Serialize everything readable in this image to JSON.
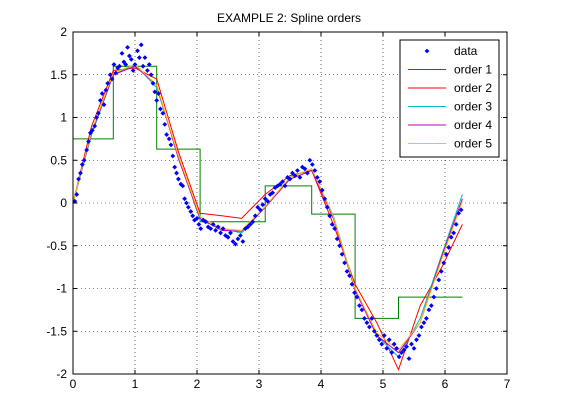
{
  "chart_data": {
    "type": "line",
    "title": "EXAMPLE 2: Spline orders",
    "xlabel": "",
    "ylabel": "",
    "xlim": [
      0,
      7
    ],
    "ylim": [
      -2,
      2
    ],
    "xticks": [
      0,
      1,
      2,
      3,
      4,
      5,
      6,
      7
    ],
    "yticks": [
      -2,
      -1.5,
      -1,
      -0.5,
      0,
      0.5,
      1,
      1.5,
      2
    ],
    "xtick_labels": [
      "0",
      "1",
      "2",
      "3",
      "4",
      "5",
      "6",
      "7"
    ],
    "ytick_labels": [
      "-2",
      "-1.5",
      "-1",
      "-0.5",
      "0",
      "0.5",
      "1",
      "1.5",
      "2"
    ],
    "grid": true,
    "legend_position": "top-right",
    "series": [
      {
        "name": "data",
        "kind": "scatter",
        "color": "#0000ff",
        "points": [
          [
            0.03,
            0.02
          ],
          [
            0.06,
            0.1
          ],
          [
            0.09,
            0.28
          ],
          [
            0.12,
            0.35
          ],
          [
            0.15,
            0.45
          ],
          [
            0.18,
            0.5
          ],
          [
            0.22,
            0.62
          ],
          [
            0.25,
            0.72
          ],
          [
            0.28,
            0.82
          ],
          [
            0.31,
            0.85
          ],
          [
            0.35,
            0.9
          ],
          [
            0.38,
            1.0
          ],
          [
            0.41,
            1.05
          ],
          [
            0.44,
            1.2
          ],
          [
            0.47,
            1.28
          ],
          [
            0.5,
            1.15
          ],
          [
            0.53,
            1.32
          ],
          [
            0.56,
            1.4
          ],
          [
            0.6,
            1.5
          ],
          [
            0.63,
            1.45
          ],
          [
            0.66,
            1.62
          ],
          [
            0.69,
            1.52
          ],
          [
            0.72,
            1.58
          ],
          [
            0.75,
            1.6
          ],
          [
            0.79,
            1.75
          ],
          [
            0.82,
            1.65
          ],
          [
            0.85,
            1.62
          ],
          [
            0.88,
            1.82
          ],
          [
            0.91,
            1.72
          ],
          [
            0.94,
            1.68
          ],
          [
            0.97,
            1.55
          ],
          [
            1.0,
            1.62
          ],
          [
            1.04,
            1.78
          ],
          [
            1.07,
            1.7
          ],
          [
            1.1,
            1.85
          ],
          [
            1.13,
            1.6
          ],
          [
            1.16,
            1.7
          ],
          [
            1.2,
            1.55
          ],
          [
            1.23,
            1.62
          ],
          [
            1.26,
            1.5
          ],
          [
            1.29,
            1.4
          ],
          [
            1.32,
            1.3
          ],
          [
            1.35,
            1.2
          ],
          [
            1.38,
            1.28
          ],
          [
            1.41,
            1.1
          ],
          [
            1.45,
            1.05
          ],
          [
            1.48,
            0.92
          ],
          [
            1.51,
            0.8
          ],
          [
            1.55,
            0.75
          ],
          [
            1.58,
            0.68
          ],
          [
            1.61,
            0.55
          ],
          [
            1.64,
            0.42
          ],
          [
            1.67,
            0.35
          ],
          [
            1.7,
            0.28
          ],
          [
            1.74,
            0.22
          ],
          [
            1.77,
            0.2
          ],
          [
            1.8,
            0.05
          ],
          [
            1.83,
            0.0
          ],
          [
            1.86,
            -0.05
          ],
          [
            1.9,
            -0.1
          ],
          [
            1.93,
            -0.15
          ],
          [
            1.96,
            -0.2
          ],
          [
            2.0,
            -0.18
          ],
          [
            2.03,
            -0.25
          ],
          [
            2.06,
            -0.3
          ],
          [
            2.1,
            -0.2
          ],
          [
            2.14,
            -0.22
          ],
          [
            2.18,
            -0.28
          ],
          [
            2.22,
            -0.3
          ],
          [
            2.26,
            -0.25
          ],
          [
            2.3,
            -0.32
          ],
          [
            2.34,
            -0.28
          ],
          [
            2.38,
            -0.35
          ],
          [
            2.42,
            -0.3
          ],
          [
            2.46,
            -0.38
          ],
          [
            2.5,
            -0.4
          ],
          [
            2.54,
            -0.35
          ],
          [
            2.58,
            -0.45
          ],
          [
            2.62,
            -0.48
          ],
          [
            2.66,
            -0.42
          ],
          [
            2.7,
            -0.38
          ],
          [
            2.74,
            -0.45
          ],
          [
            2.78,
            -0.3
          ],
          [
            2.82,
            -0.28
          ],
          [
            2.86,
            -0.25
          ],
          [
            2.9,
            -0.22
          ],
          [
            2.94,
            -0.15
          ],
          [
            2.98,
            -0.05
          ],
          [
            3.02,
            -0.08
          ],
          [
            3.06,
            -0.02
          ],
          [
            3.1,
            0.05
          ],
          [
            3.14,
            0.02
          ],
          [
            3.18,
            0.1
          ],
          [
            3.22,
            0.12
          ],
          [
            3.26,
            0.18
          ],
          [
            3.3,
            0.2
          ],
          [
            3.34,
            0.22
          ],
          [
            3.38,
            0.25
          ],
          [
            3.42,
            0.2
          ],
          [
            3.46,
            0.3
          ],
          [
            3.5,
            0.28
          ],
          [
            3.54,
            0.35
          ],
          [
            3.58,
            0.32
          ],
          [
            3.62,
            0.38
          ],
          [
            3.66,
            0.3
          ],
          [
            3.7,
            0.42
          ],
          [
            3.74,
            0.4
          ],
          [
            3.78,
            0.35
          ],
          [
            3.82,
            0.5
          ],
          [
            3.86,
            0.45
          ],
          [
            3.9,
            0.38
          ],
          [
            3.94,
            0.3
          ],
          [
            3.98,
            0.25
          ],
          [
            4.02,
            0.15
          ],
          [
            4.06,
            0.05
          ],
          [
            4.1,
            -0.05
          ],
          [
            4.14,
            -0.15
          ],
          [
            4.18,
            -0.25
          ],
          [
            4.22,
            -0.3
          ],
          [
            4.26,
            -0.42
          ],
          [
            4.3,
            -0.5
          ],
          [
            4.34,
            -0.6
          ],
          [
            4.38,
            -0.7
          ],
          [
            4.42,
            -0.8
          ],
          [
            4.46,
            -0.85
          ],
          [
            4.5,
            -0.95
          ],
          [
            4.54,
            -1.05
          ],
          [
            4.58,
            -1.1
          ],
          [
            4.62,
            -1.2
          ],
          [
            4.66,
            -1.25
          ],
          [
            4.7,
            -1.35
          ],
          [
            4.74,
            -1.4
          ],
          [
            4.78,
            -1.45
          ],
          [
            4.82,
            -1.35
          ],
          [
            4.86,
            -1.5
          ],
          [
            4.9,
            -1.55
          ],
          [
            4.94,
            -1.6
          ],
          [
            4.98,
            -1.65
          ],
          [
            5.02,
            -1.55
          ],
          [
            5.06,
            -1.7
          ],
          [
            5.1,
            -1.6
          ],
          [
            5.14,
            -1.75
          ],
          [
            5.18,
            -1.65
          ],
          [
            5.22,
            -1.7
          ],
          [
            5.26,
            -1.8
          ],
          [
            5.3,
            -1.75
          ],
          [
            5.34,
            -1.72
          ],
          [
            5.38,
            -1.68
          ],
          [
            5.42,
            -1.82
          ],
          [
            5.46,
            -1.65
          ],
          [
            5.5,
            -1.7
          ],
          [
            5.54,
            -1.6
          ],
          [
            5.58,
            -1.55
          ],
          [
            5.62,
            -1.45
          ],
          [
            5.66,
            -1.4
          ],
          [
            5.7,
            -1.35
          ],
          [
            5.74,
            -1.25
          ],
          [
            5.78,
            -1.2
          ],
          [
            5.82,
            -1.1
          ],
          [
            5.86,
            -1.0
          ],
          [
            5.9,
            -0.9
          ],
          [
            5.94,
            -0.8
          ],
          [
            5.98,
            -0.7
          ],
          [
            6.02,
            -0.6
          ],
          [
            6.06,
            -0.52
          ],
          [
            6.1,
            -0.4
          ],
          [
            6.14,
            -0.35
          ],
          [
            6.18,
            -0.25
          ],
          [
            6.22,
            -0.12
          ],
          [
            6.26,
            -0.08
          ]
        ]
      },
      {
        "name": "order 1",
        "kind": "step",
        "color": "#008000",
        "x": [
          0,
          0.65,
          0.65,
          1.35,
          1.35,
          2.05,
          2.05,
          2.72,
          2.72,
          3.1,
          3.1,
          3.85,
          3.85,
          4.55,
          4.55,
          5.25,
          5.25,
          6.28
        ],
        "y": [
          0.75,
          0.75,
          1.6,
          1.6,
          0.63,
          0.63,
          -0.22,
          -0.22,
          -0.22,
          -0.22,
          0.2,
          0.2,
          -0.13,
          -0.13,
          -1.35,
          -1.35,
          -1.1,
          -1.1
        ]
      },
      {
        "name": "order 2",
        "kind": "line",
        "color": "#ff0000",
        "x": [
          0,
          0.3,
          0.65,
          1.0,
          1.35,
          1.7,
          2.05,
          2.4,
          2.72,
          3.1,
          3.5,
          3.85,
          4.2,
          4.55,
          4.9,
          5.25,
          5.6,
          5.95,
          6.28
        ],
        "y": [
          0.0,
          0.9,
          1.55,
          1.58,
          1.45,
          0.6,
          -0.12,
          -0.15,
          -0.18,
          0.1,
          0.32,
          0.38,
          -0.25,
          -0.95,
          -1.4,
          -1.95,
          -1.2,
          -0.75,
          -0.25
        ]
      },
      {
        "name": "order 3",
        "kind": "line",
        "color": "#00bfbf",
        "x": [
          0,
          0.3,
          0.65,
          1.0,
          1.35,
          1.7,
          2.05,
          2.4,
          2.72,
          3.1,
          3.5,
          3.85,
          4.2,
          4.55,
          4.9,
          5.25,
          5.6,
          5.95,
          6.28
        ],
        "y": [
          0.0,
          0.8,
          1.5,
          1.62,
          1.35,
          0.55,
          -0.2,
          -0.3,
          -0.35,
          -0.05,
          0.3,
          0.4,
          -0.15,
          -1.0,
          -1.55,
          -1.8,
          -1.35,
          -0.6,
          0.1
        ]
      },
      {
        "name": "order 4",
        "kind": "line",
        "color": "#bf00bf",
        "x": [
          0,
          0.3,
          0.65,
          1.0,
          1.35,
          1.7,
          2.05,
          2.4,
          2.72,
          3.1,
          3.5,
          3.85,
          4.2,
          4.55,
          4.9,
          5.25,
          5.6,
          5.95,
          6.28
        ],
        "y": [
          0.0,
          0.82,
          1.5,
          1.6,
          1.38,
          0.52,
          -0.18,
          -0.32,
          -0.33,
          -0.05,
          0.28,
          0.38,
          -0.18,
          -1.02,
          -1.55,
          -1.75,
          -1.4,
          -0.62,
          0.05
        ]
      },
      {
        "name": "order 5",
        "kind": "line",
        "color": "#ffbf00",
        "x": [
          0,
          0.3,
          0.65,
          1.0,
          1.35,
          1.7,
          2.05,
          2.4,
          2.72,
          3.1,
          3.5,
          3.85,
          4.2,
          4.55,
          4.9,
          5.25,
          5.6,
          5.95,
          6.28
        ],
        "y": [
          0.0,
          0.84,
          1.52,
          1.62,
          1.38,
          0.55,
          -0.16,
          -0.3,
          -0.32,
          -0.04,
          0.3,
          0.4,
          -0.16,
          -1.0,
          -1.52,
          -1.72,
          -1.4,
          -0.65,
          0.02
        ]
      }
    ]
  }
}
